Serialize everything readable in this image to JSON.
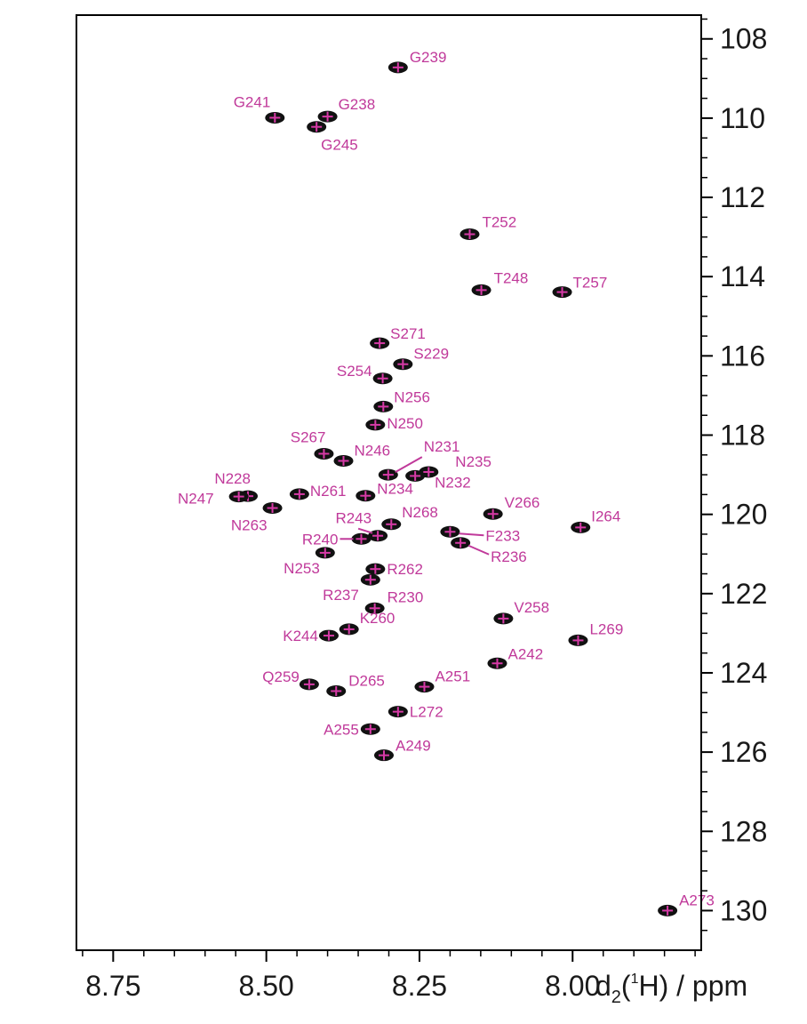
{
  "chart_data": {
    "type": "scatter",
    "title": "",
    "xlabel": "d",
    "xlabel_sub": "2",
    "xlabel_sup": "1",
    "xlabel_mid": "(",
    "xlabel_nucleus": "H) / ppm",
    "ylabel": "",
    "x_reversed": true,
    "xlim": [
      8.81,
      7.79
    ],
    "ylim": [
      107.4,
      131.0
    ],
    "x_ticks": [
      8.75,
      8.5,
      8.25,
      8.0
    ],
    "x_tick_labels": [
      "8.75",
      "8.50",
      "8.25",
      "8.00"
    ],
    "y_ticks": [
      108,
      110,
      112,
      114,
      116,
      118,
      120,
      122,
      124,
      126,
      128,
      130
    ],
    "y_tick_labels": [
      "108",
      "110",
      "112",
      "114",
      "116",
      "118",
      "120",
      "122",
      "124",
      "126",
      "128",
      "130"
    ],
    "grid": false,
    "colors": {
      "peak": "#111111",
      "marker": "#d63aa6",
      "label": "#c0399a",
      "axis": "#000000"
    },
    "peaks": [
      {
        "label": "G239",
        "x": 8.285,
        "y": 108.72
      },
      {
        "label": "G241",
        "x": 8.486,
        "y": 109.99
      },
      {
        "label": "G238",
        "x": 8.4,
        "y": 109.96
      },
      {
        "label": "G245",
        "x": 8.418,
        "y": 110.22
      },
      {
        "label": "T252",
        "x": 8.168,
        "y": 112.93
      },
      {
        "label": "T248",
        "x": 8.149,
        "y": 114.34
      },
      {
        "label": "T257",
        "x": 8.017,
        "y": 114.39
      },
      {
        "label": "S271",
        "x": 8.315,
        "y": 115.68
      },
      {
        "label": "S229",
        "x": 8.277,
        "y": 116.21
      },
      {
        "label": "S254",
        "x": 8.31,
        "y": 116.57
      },
      {
        "label": "N256",
        "x": 8.309,
        "y": 117.28
      },
      {
        "label": "N250",
        "x": 8.322,
        "y": 117.74
      },
      {
        "label": "S267",
        "x": 8.406,
        "y": 118.47
      },
      {
        "label": "N246",
        "x": 8.374,
        "y": 118.65
      },
      {
        "label": "N231",
        "x": 8.301,
        "y": 119.0
      },
      {
        "label": "N235",
        "x": 8.235,
        "y": 118.93
      },
      {
        "label": "N232",
        "x": 8.257,
        "y": 119.03
      },
      {
        "label": "N228",
        "x": 8.53,
        "y": 119.54
      },
      {
        "label": "N247",
        "x": 8.545,
        "y": 119.55
      },
      {
        "label": "N261",
        "x": 8.446,
        "y": 119.49
      },
      {
        "label": "N234",
        "x": 8.338,
        "y": 119.53
      },
      {
        "label": "N263",
        "x": 8.49,
        "y": 119.84
      },
      {
        "label": "V266",
        "x": 8.13,
        "y": 119.99
      },
      {
        "label": "I264",
        "x": 7.987,
        "y": 120.33
      },
      {
        "label": "N268",
        "x": 8.296,
        "y": 120.25
      },
      {
        "label": "F233",
        "x": 8.2,
        "y": 120.44
      },
      {
        "label": "R236",
        "x": 8.183,
        "y": 120.72
      },
      {
        "label": "R243",
        "x": 8.318,
        "y": 120.54
      },
      {
        "label": "R240",
        "x": 8.345,
        "y": 120.62
      },
      {
        "label": "N253",
        "x": 8.404,
        "y": 120.97
      },
      {
        "label": "R262",
        "x": 8.322,
        "y": 121.38
      },
      {
        "label": "R237",
        "x": 8.33,
        "y": 121.65
      },
      {
        "label": "R230",
        "x": 8.323,
        "y": 122.37
      },
      {
        "label": "V258",
        "x": 8.113,
        "y": 122.63
      },
      {
        "label": "L269",
        "x": 7.991,
        "y": 123.18
      },
      {
        "label": "K260",
        "x": 8.365,
        "y": 122.9
      },
      {
        "label": "K244",
        "x": 8.398,
        "y": 123.06
      },
      {
        "label": "A242",
        "x": 8.123,
        "y": 123.76
      },
      {
        "label": "Q259",
        "x": 8.43,
        "y": 124.29
      },
      {
        "label": "D265",
        "x": 8.386,
        "y": 124.46
      },
      {
        "label": "A251",
        "x": 8.242,
        "y": 124.35
      },
      {
        "label": "L272",
        "x": 8.285,
        "y": 124.98
      },
      {
        "label": "A255",
        "x": 8.33,
        "y": 125.42
      },
      {
        "label": "A249",
        "x": 8.308,
        "y": 126.08
      },
      {
        "label": "A273",
        "x": 7.845,
        "y": 130.0
      }
    ]
  }
}
